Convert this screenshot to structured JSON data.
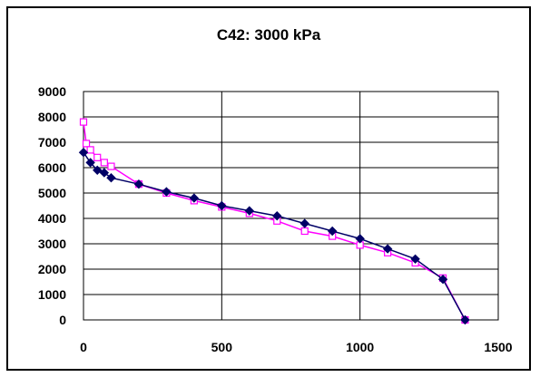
{
  "chart_data": {
    "type": "line",
    "title": "C42: 3000 kPa",
    "xlim": [
      0,
      1500
    ],
    "ylim": [
      0,
      9000
    ],
    "xticks": [
      0,
      500,
      1000,
      1500
    ],
    "yticks": [
      0,
      1000,
      2000,
      3000,
      4000,
      5000,
      6000,
      7000,
      8000,
      9000
    ],
    "grid": true,
    "legend": "none",
    "series": [
      {
        "color": "#000066",
        "marker": "filled-diamond",
        "x": [
          0,
          25,
          50,
          75,
          100,
          200,
          300,
          400,
          500,
          600,
          700,
          800,
          900,
          1000,
          1100,
          1200,
          1300,
          1380
        ],
        "y": [
          6600,
          6200,
          5900,
          5800,
          5600,
          5350,
          5050,
          4800,
          4500,
          4300,
          4100,
          3800,
          3500,
          3200,
          2800,
          2400,
          1600,
          0
        ]
      },
      {
        "color": "#ff00ff",
        "marker": "open-square",
        "x": [
          0,
          10,
          25,
          50,
          75,
          100,
          200,
          300,
          400,
          500,
          600,
          700,
          800,
          900,
          1000,
          1100,
          1200,
          1300,
          1380
        ],
        "y": [
          7800,
          6950,
          6700,
          6400,
          6200,
          6050,
          5350,
          5000,
          4700,
          4450,
          4200,
          3900,
          3500,
          3300,
          2950,
          2650,
          2250,
          1650,
          0
        ]
      }
    ]
  }
}
